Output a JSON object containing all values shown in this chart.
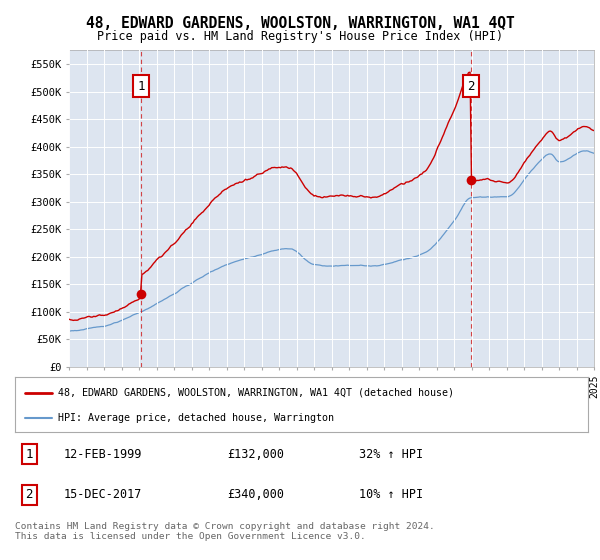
{
  "title": "48, EDWARD GARDENS, WOOLSTON, WARRINGTON, WA1 4QT",
  "subtitle": "Price paid vs. HM Land Registry's House Price Index (HPI)",
  "background_color": "#dde5f0",
  "plot_bg_color": "#dde5f0",
  "ylim": [
    0,
    575000
  ],
  "yticks": [
    0,
    50000,
    100000,
    150000,
    200000,
    250000,
    300000,
    350000,
    400000,
    450000,
    500000,
    550000
  ],
  "ytick_labels": [
    "£0",
    "£50K",
    "£100K",
    "£150K",
    "£200K",
    "£250K",
    "£300K",
    "£350K",
    "£400K",
    "£450K",
    "£500K",
    "£550K"
  ],
  "sale1_date": 1999.12,
  "sale1_price": 132000,
  "sale1_label": "1",
  "sale2_date": 2017.96,
  "sale2_price": 340000,
  "sale2_label": "2",
  "legend_line1": "48, EDWARD GARDENS, WOOLSTON, WARRINGTON, WA1 4QT (detached house)",
  "legend_line2": "HPI: Average price, detached house, Warrington",
  "note1_label": "1",
  "note1_date": "12-FEB-1999",
  "note1_price": "£132,000",
  "note1_hpi": "32% ↑ HPI",
  "note2_label": "2",
  "note2_date": "15-DEC-2017",
  "note2_price": "£340,000",
  "note2_hpi": "10% ↑ HPI",
  "footer": "Contains HM Land Registry data © Crown copyright and database right 2024.\nThis data is licensed under the Open Government Licence v3.0.",
  "red_color": "#cc0000",
  "blue_color": "#6699cc",
  "xmin": 1995,
  "xmax": 2025
}
